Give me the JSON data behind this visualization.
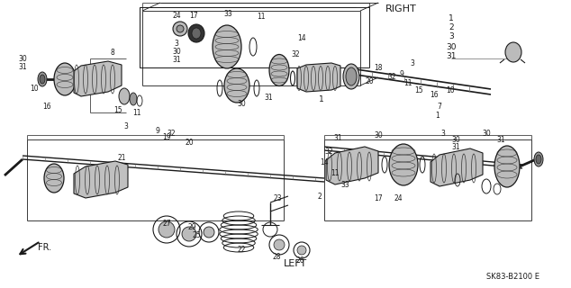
{
  "bg_color": "#ffffff",
  "fig_width": 6.34,
  "fig_height": 3.2,
  "dpi": 100,
  "right_label": "RIGHT",
  "left_label": "LEFT",
  "part_number": "SK83-B2100 E",
  "fr_label": "FR.",
  "color": "#1a1a1a",
  "gray_dark": "#333333",
  "gray_mid": "#666666",
  "gray_light": "#999999",
  "gray_lighter": "#bbbbbb",
  "gray_fill": "#888888"
}
